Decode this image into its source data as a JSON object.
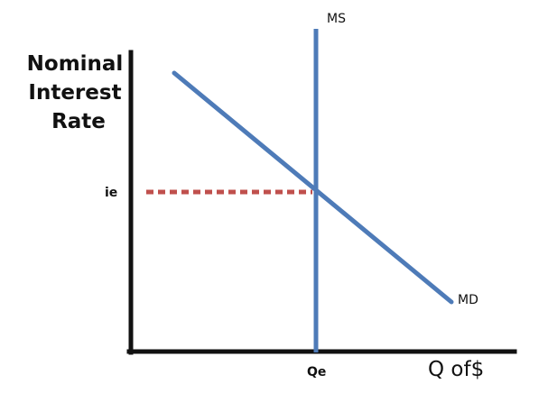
{
  "diagram": {
    "y_axis_title_lines": [
      "Nominal",
      "Interest",
      "Rate"
    ],
    "x_axis_title": "Q of$",
    "equilibrium_rate_label": "ie",
    "equilibrium_quantity_label": "Qe",
    "supply_curve_label": "MS",
    "demand_curve_label": "MD",
    "colors": {
      "axis": "#111111",
      "curves": "#4e7bb8",
      "guide_line": "#c0504d",
      "background": "#ffffff"
    }
  }
}
